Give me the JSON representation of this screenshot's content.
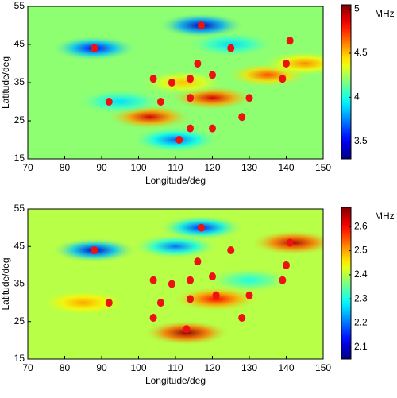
{
  "chart_data": [
    {
      "type": "heatmap",
      "xlabel": "Longitude/deg",
      "ylabel": "Latitude/deg",
      "colorbar_label": "MHz",
      "xlim": [
        70,
        150
      ],
      "xticks": [
        70,
        80,
        90,
        100,
        110,
        120,
        130,
        140,
        150
      ],
      "ylim": [
        15,
        55
      ],
      "yticks": [
        15,
        25,
        35,
        45,
        55
      ],
      "clim": [
        3.3,
        5.05
      ],
      "cticks": [
        3.5,
        4,
        4.5,
        5
      ],
      "background_value": 4.2,
      "field": {
        "x": [
          88,
          117,
          110,
          103,
          120,
          135,
          95,
          145,
          125,
          112
        ],
        "y": [
          44,
          50,
          20,
          26,
          31,
          37,
          30,
          40,
          45,
          35
        ],
        "values": [
          3.5,
          3.4,
          3.7,
          4.9,
          4.9,
          4.7,
          3.9,
          4.6,
          3.9,
          4.5
        ]
      },
      "points": {
        "color": "#ee1111",
        "x": [
          88,
          117,
          125,
          141,
          116,
          140,
          104,
          109,
          114,
          120,
          139,
          92,
          106,
          114,
          130,
          128,
          120,
          111,
          114
        ],
        "y": [
          44,
          50,
          44,
          46,
          40,
          40,
          36,
          35,
          36,
          37,
          36,
          30,
          30,
          31,
          31,
          26,
          23,
          20,
          23
        ]
      }
    },
    {
      "type": "heatmap",
      "xlabel": "Longitude/deg",
      "ylabel": "Latitude/deg",
      "colorbar_label": "MHz",
      "xlim": [
        70,
        150
      ],
      "xticks": [
        70,
        80,
        90,
        100,
        110,
        120,
        130,
        140,
        150
      ],
      "ylim": [
        15,
        55
      ],
      "yticks": [
        15,
        25,
        35,
        45,
        55
      ],
      "clim": [
        2.05,
        2.68
      ],
      "cticks": [
        2.1,
        2.2,
        2.3,
        2.4,
        2.5,
        2.6
      ],
      "background_value": 2.4,
      "field": {
        "x": [
          88,
          117,
          113,
          142,
          110,
          121,
          85,
          130
        ],
        "y": [
          44,
          50,
          22,
          46,
          45,
          31,
          30,
          36
        ],
        "values": [
          2.1,
          2.15,
          2.67,
          2.65,
          2.2,
          2.6,
          2.5,
          2.3
        ]
      },
      "points": {
        "color": "#ee1111",
        "x": [
          88,
          117,
          125,
          141,
          116,
          140,
          104,
          109,
          114,
          120,
          139,
          92,
          106,
          114,
          121,
          130,
          104,
          128,
          113
        ],
        "y": [
          44,
          50,
          44,
          46,
          41,
          40,
          36,
          35,
          36,
          37,
          36,
          30,
          30,
          31,
          32,
          32,
          26,
          26,
          23
        ]
      }
    }
  ]
}
